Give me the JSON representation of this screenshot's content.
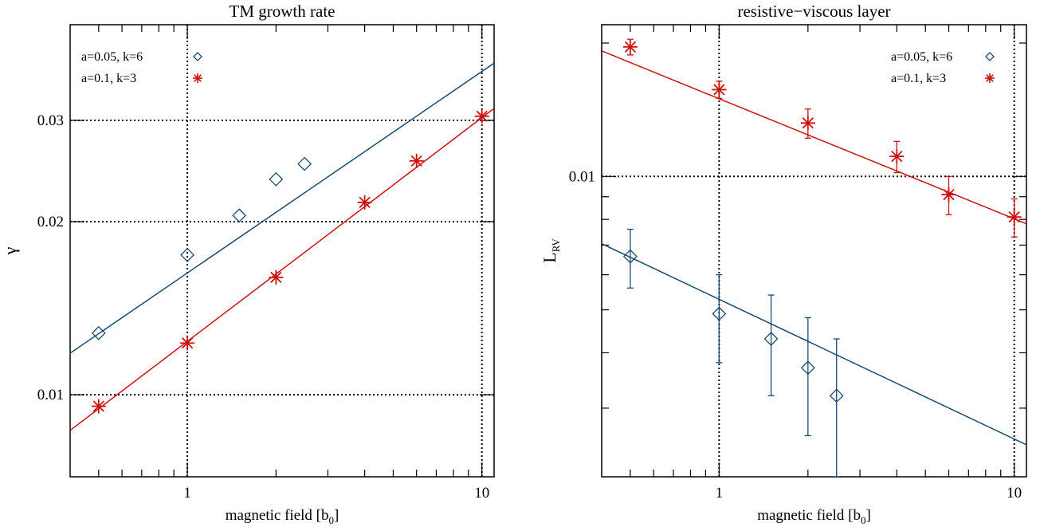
{
  "chart_data": [
    {
      "type": "scatter",
      "title": "TM growth rate",
      "xlabel": "magnetic field [b",
      "xlabel_sub": "0",
      "xlabel_tail": "]",
      "ylabel": "γ",
      "ylabel_sub": "",
      "xscale": "log",
      "yscale": "log",
      "xlim": [
        0.4,
        11
      ],
      "ylim": [
        0.0072,
        0.044
      ],
      "x_ticks_major": [
        {
          "value": 1,
          "label": "1"
        },
        {
          "value": 10,
          "label": "10"
        }
      ],
      "x_ticks_minor": [
        0.5,
        0.6,
        0.7,
        0.8,
        0.9,
        2,
        3,
        4,
        5,
        6,
        7,
        8,
        9
      ],
      "y_ticks_major": [
        {
          "value": 0.01,
          "label": "0.01"
        },
        {
          "value": 0.02,
          "label": "0.02"
        },
        {
          "value": 0.03,
          "label": "0.03"
        }
      ],
      "y_ticks_minor": [],
      "grid_x": [
        1,
        10
      ],
      "grid_y": [
        0.01,
        0.02,
        0.03
      ],
      "legend_placement": "top-left",
      "series": [
        {
          "name": "a=0.05, k=6",
          "marker": "diamond",
          "color": "#1b4a6e",
          "x": [
            0.5,
            1.0,
            1.5,
            2.0,
            2.5
          ],
          "y": [
            0.0128,
            0.0175,
            0.0205,
            0.0237,
            0.0252
          ],
          "fit": {
            "x0": 0.4,
            "y0": 0.01181,
            "x1": 11,
            "y1": 0.03773
          }
        },
        {
          "name": "a=0.1,   k=3",
          "marker": "asterisk",
          "color": "#cc1111",
          "x": [
            0.5,
            1.0,
            2.0,
            4.0,
            6.0,
            10.0
          ],
          "y": [
            0.00955,
            0.0123,
            0.016,
            0.0216,
            0.0255,
            0.0305
          ],
          "fit": {
            "x0": 0.4,
            "y0": 0.00867,
            "x1": 11,
            "y1": 0.03147
          }
        }
      ]
    },
    {
      "type": "scatter",
      "title": "resistive−viscous layer",
      "xlabel": "magnetic field [b",
      "xlabel_sub": "0",
      "xlabel_tail": "]",
      "ylabel": "L",
      "ylabel_sub": "RV",
      "xscale": "log",
      "yscale": "log",
      "xlim": [
        0.4,
        11
      ],
      "ylim": [
        0.0021,
        0.022
      ],
      "x_ticks_major": [
        {
          "value": 1,
          "label": "1"
        },
        {
          "value": 10,
          "label": "10"
        }
      ],
      "x_ticks_minor": [
        0.5,
        0.6,
        0.7,
        0.8,
        0.9,
        2,
        3,
        4,
        5,
        6,
        7,
        8,
        9
      ],
      "y_ticks_major": [
        {
          "value": 0.01,
          "label": "0.01"
        }
      ],
      "y_ticks_minor": [
        0.003,
        0.004,
        0.005,
        0.006,
        0.007,
        0.008,
        0.009,
        0.02
      ],
      "grid_x": [
        1,
        10
      ],
      "grid_y": [
        0.01
      ],
      "legend_placement": "top-right",
      "series": [
        {
          "name": "a=0.05, k=6",
          "marker": "diamond",
          "color": "#1b4a6e",
          "x": [
            0.5,
            1.0,
            1.5,
            2.0,
            2.5
          ],
          "y": [
            0.0066,
            0.0049,
            0.0043,
            0.0037,
            0.0032
          ],
          "y_err": [
            0.001,
            0.0011,
            0.0011,
            0.0011,
            0.0011
          ],
          "fit": {
            "x0": 0.4,
            "y0": 0.00705,
            "x1": 11,
            "y1": 0.00248
          }
        },
        {
          "name": "a=0.1,   k=3",
          "marker": "asterisk",
          "color": "#cc1111",
          "x": [
            0.5,
            1.0,
            2.0,
            4.0,
            6.0,
            10.0
          ],
          "y": [
            0.0196,
            0.0157,
            0.0132,
            0.0111,
            0.0091,
            0.0081
          ],
          "y_err": [
            0.0008,
            0.0007,
            0.001,
            0.0009,
            0.0009,
            0.0008
          ],
          "fit": {
            "x0": 0.4,
            "y0": 0.0192,
            "x1": 11,
            "y1": 0.00782
          }
        }
      ]
    }
  ]
}
